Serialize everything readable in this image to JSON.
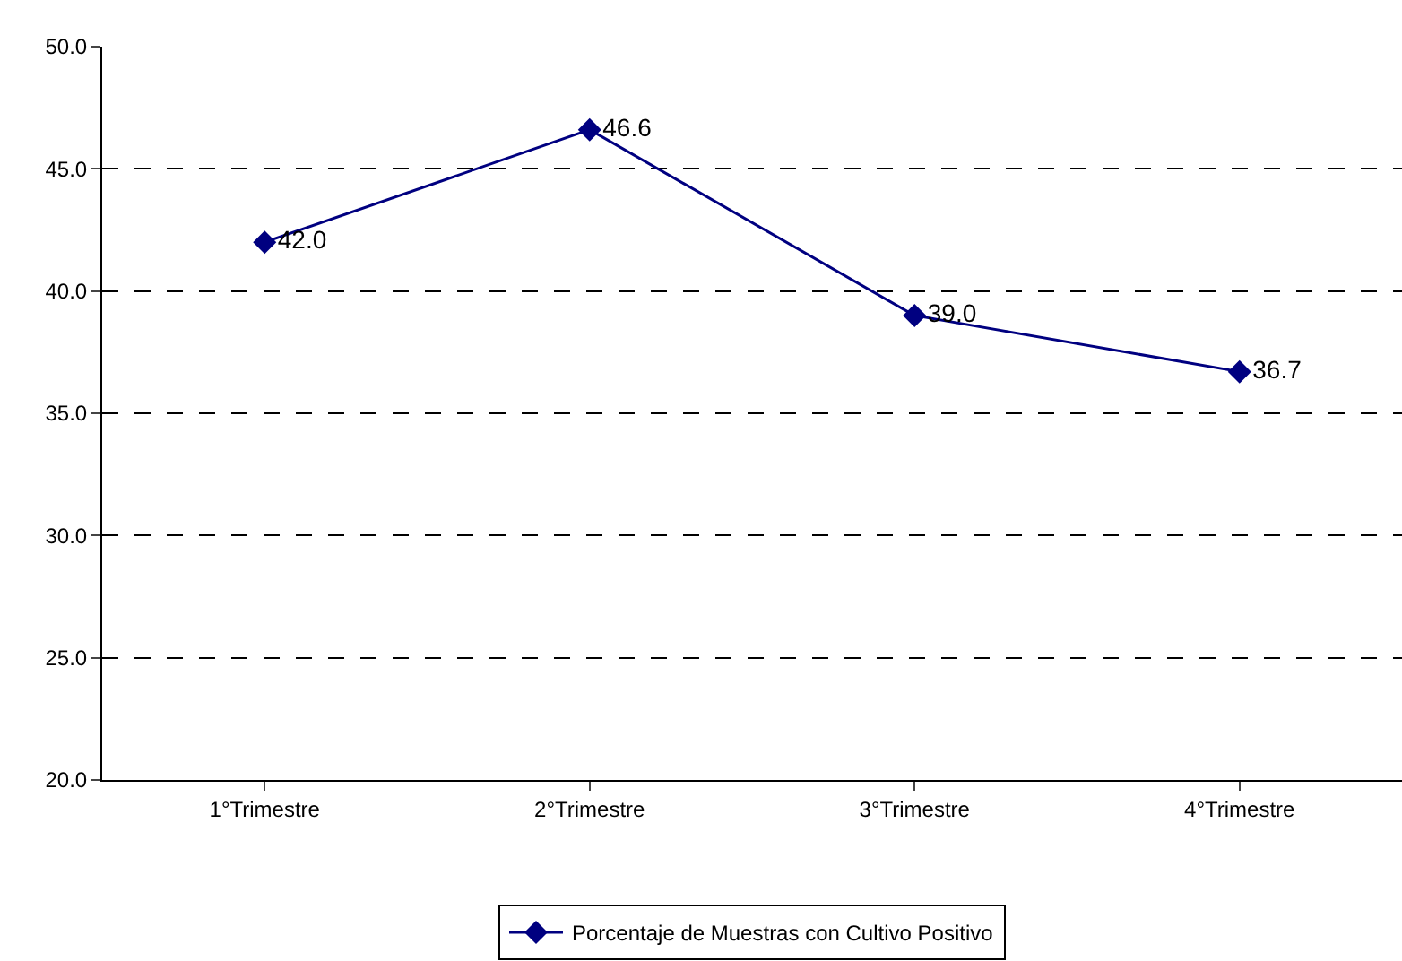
{
  "chart_data": {
    "type": "line",
    "categories": [
      "1°Trimestre",
      "2°Trimestre",
      "3°Trimestre",
      "4°Trimestre"
    ],
    "series": [
      {
        "name": "Porcentaje de Muestras con Cultivo Positivo",
        "color": "#000080",
        "values": [
          42.0,
          46.6,
          39.0,
          36.7
        ],
        "value_labels": [
          "42.0",
          "46.6",
          "39.0",
          "36.7"
        ]
      }
    ],
    "ylim": [
      20,
      50
    ],
    "yticks": [
      {
        "value": 20,
        "label": "20.0"
      },
      {
        "value": 25,
        "label": "25.0"
      },
      {
        "value": 30,
        "label": "30.0"
      },
      {
        "value": 35,
        "label": "35.0"
      },
      {
        "value": 40,
        "label": "40.0"
      },
      {
        "value": 45,
        "label": "45.0"
      },
      {
        "value": 50,
        "label": "50.0"
      }
    ],
    "grid": "y",
    "legend": "bottom",
    "marker": "diamond",
    "line_style": "solid"
  }
}
